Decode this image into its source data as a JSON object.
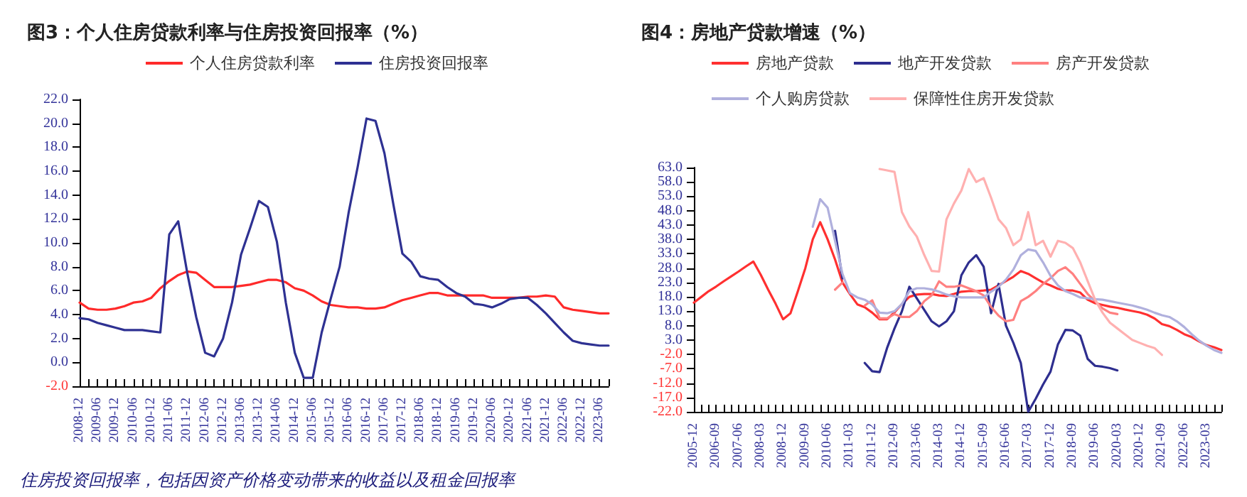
{
  "chart_data": [
    {
      "type": "line",
      "title": "图3：个人住房贷款利率与住房投资回报率（%）",
      "legend": "top",
      "grid": false,
      "marker": "none",
      "line_style": "solid",
      "categories": [
        "2008-12",
        null,
        "2009-06",
        null,
        "2009-12",
        null,
        "2010-06",
        null,
        "2010-12",
        null,
        "2011-06",
        null,
        "2011-12",
        null,
        "2012-06",
        null,
        "2012-12",
        null,
        "2013-06",
        null,
        "2013-12",
        null,
        "2014-06",
        null,
        "2014-12",
        null,
        "2015-06",
        null,
        "2015-12",
        null,
        "2016-06",
        null,
        "2016-12",
        null,
        "2017-06",
        null,
        "2017-12",
        null,
        "2018-06",
        null,
        "2018-12",
        null,
        "2019-06",
        null,
        "2019-12",
        null,
        "2020-06",
        null,
        "2020-12",
        null,
        "2021-06",
        null,
        "2021-12",
        null,
        "2022-06",
        null,
        "2022-12",
        null,
        "2023-06",
        null
      ],
      "ylim": [
        -2,
        22
      ],
      "yticks": [
        {
          "value": -2,
          "label": "-2.0"
        },
        {
          "value": 0,
          "label": "0.0"
        },
        {
          "value": 2,
          "label": "2.0"
        },
        {
          "value": 4,
          "label": "4.0"
        },
        {
          "value": 6,
          "label": "6.0"
        },
        {
          "value": 8,
          "label": "8.0"
        },
        {
          "value": 10,
          "label": "10.0"
        },
        {
          "value": 12,
          "label": "12.0"
        },
        {
          "value": 14,
          "label": "14.0"
        },
        {
          "value": 16,
          "label": "16.0"
        },
        {
          "value": 18,
          "label": "18.0"
        },
        {
          "value": 20,
          "label": "20.0"
        },
        {
          "value": 22,
          "label": "22.0"
        }
      ],
      "series": [
        {
          "name": "个人住房贷款利率",
          "color": "#ff2a2a",
          "values": [
            5.0,
            4.5,
            4.4,
            4.4,
            4.5,
            4.7,
            5.0,
            5.1,
            5.4,
            6.2,
            6.8,
            7.3,
            7.6,
            7.5,
            6.9,
            6.3,
            6.3,
            6.3,
            6.4,
            6.5,
            6.7,
            6.9,
            6.9,
            6.7,
            6.2,
            6.0,
            5.6,
            5.1,
            4.8,
            4.7,
            4.6,
            4.6,
            4.5,
            4.5,
            4.6,
            4.9,
            5.2,
            5.4,
            5.6,
            5.8,
            5.8,
            5.6,
            5.6,
            5.6,
            5.6,
            5.6,
            5.4,
            5.4,
            5.4,
            5.4,
            5.5,
            5.5,
            5.6,
            5.5,
            4.6,
            4.4,
            4.3,
            4.2,
            4.1,
            4.1
          ]
        },
        {
          "name": "住房投资回报率",
          "color": "#2e3192",
          "values": [
            3.7,
            3.6,
            3.3,
            3.1,
            2.9,
            2.7,
            2.7,
            2.7,
            2.6,
            2.5,
            10.7,
            11.8,
            7.5,
            3.8,
            0.8,
            0.5,
            2.0,
            5.0,
            9.0,
            11.2,
            13.5,
            13.0,
            10.1,
            5.0,
            0.8,
            -1.3,
            -1.3,
            2.5,
            5.3,
            8.0,
            12.5,
            16.3,
            20.4,
            20.2,
            17.5,
            13.2,
            9.1,
            8.4,
            7.2,
            7.0,
            6.9,
            6.3,
            5.8,
            5.5,
            4.9,
            4.8,
            4.6,
            4.9,
            5.3,
            5.4,
            5.4,
            4.8,
            4.1,
            3.3,
            2.5,
            1.8,
            1.6,
            1.5,
            1.4,
            1.4
          ]
        }
      ],
      "annotations": [
        "住房投资回报率，包括因资产价格变动带来的收益以及租金回报率"
      ]
    },
    {
      "type": "line",
      "title": "图4：房地产贷款增速（%）",
      "legend": "top",
      "grid": false,
      "marker": "none",
      "line_style": "solid",
      "categories": [
        "2005-12",
        null,
        null,
        "2006-09",
        null,
        null,
        "2007-06",
        null,
        null,
        "2008-03",
        null,
        null,
        "2008-12",
        null,
        null,
        "2009-09",
        null,
        null,
        "2010-06",
        null,
        null,
        "2011-03",
        null,
        null,
        "2011-12",
        null,
        null,
        "2012-09",
        null,
        null,
        "2013-06",
        null,
        null,
        "2014-03",
        null,
        null,
        "2014-12",
        null,
        null,
        "2015-09",
        null,
        null,
        "2016-06",
        null,
        null,
        "2017-03",
        null,
        null,
        "2017-12",
        null,
        null,
        "2018-09",
        null,
        null,
        "2019-06",
        null,
        null,
        "2020-03",
        null,
        null,
        "2020-12",
        null,
        null,
        "2021-09",
        null,
        null,
        "2022-06",
        null,
        null,
        "2023-03",
        null,
        null
      ],
      "ylim": [
        -22,
        63
      ],
      "yticks": [
        {
          "value": -22,
          "label": "-22.0"
        },
        {
          "value": -17,
          "label": "-17.0"
        },
        {
          "value": -12,
          "label": "-12.0"
        },
        {
          "value": -7,
          "label": "-7.0"
        },
        {
          "value": -2,
          "label": "-2.0"
        },
        {
          "value": 3,
          "label": "3.0"
        },
        {
          "value": 8,
          "label": "8.0"
        },
        {
          "value": 13,
          "label": "13.0"
        },
        {
          "value": 18,
          "label": "18.0"
        },
        {
          "value": 23,
          "label": "23.0"
        },
        {
          "value": 28,
          "label": "28.0"
        },
        {
          "value": 33,
          "label": "33.0"
        },
        {
          "value": 38,
          "label": "38.0"
        },
        {
          "value": 43,
          "label": "43.0"
        },
        {
          "value": 48,
          "label": "48.0"
        },
        {
          "value": 53,
          "label": "53.0"
        },
        {
          "value": 58,
          "label": "58.0"
        },
        {
          "value": 63,
          "label": "63.0"
        }
      ],
      "series": [
        {
          "name": "房地产贷款",
          "color": "#ff3030",
          "values": [
            16,
            18,
            20,
            21.6,
            23.4,
            25.1,
            26.8,
            28.6,
            30.3,
            25.7,
            20.5,
            15.6,
            10.2,
            12.3,
            20,
            28,
            38,
            44,
            38,
            31,
            23,
            19,
            15.4,
            14.4,
            12.5,
            10.2,
            10.2,
            12.6,
            15.5,
            18,
            18.8,
            19,
            19,
            18.5,
            18.3,
            19,
            19.8,
            20,
            20,
            20.2,
            20.5,
            22,
            23.5,
            25,
            27,
            26,
            24.5,
            23,
            22,
            20.8,
            20.2,
            20.2,
            19.5,
            17,
            15.8,
            15.2,
            14.6,
            14.2,
            13.6,
            13.1,
            12.6,
            11.8,
            10.5,
            8.5,
            7.8,
            6.5,
            5,
            4,
            2.5,
            1.2,
            0.5,
            -0.5
          ]
        },
        {
          "name": "地产开发贷款",
          "color": "#2e2e8f",
          "values": [
            null,
            null,
            null,
            null,
            null,
            null,
            null,
            null,
            null,
            null,
            null,
            null,
            null,
            null,
            null,
            null,
            null,
            null,
            null,
            41,
            24.4,
            null,
            null,
            -5,
            -7.9,
            -8.2,
            0.2,
            7,
            13,
            21.5,
            17.5,
            13.5,
            9.5,
            7.7,
            9.5,
            13,
            25.5,
            30,
            32.5,
            28.5,
            12.3,
            22.5,
            8,
            2,
            -5,
            -22,
            -17.5,
            -12.5,
            -8,
            1.5,
            6.5,
            6.3,
            4.5,
            -3.6,
            -6,
            -6.3,
            -6.8,
            -7.6,
            null,
            null,
            null,
            null,
            null,
            null,
            null,
            null,
            null,
            null,
            null,
            null,
            null,
            null
          ]
        },
        {
          "name": "房产开发贷款",
          "color": "#ff8080",
          "values": [
            null,
            null,
            null,
            null,
            null,
            null,
            null,
            null,
            null,
            null,
            null,
            null,
            null,
            null,
            null,
            null,
            null,
            null,
            null,
            20.5,
            23,
            null,
            null,
            15,
            16.8,
            10.5,
            10.5,
            12,
            11,
            11,
            13,
            16.5,
            18.5,
            23.4,
            21.5,
            21.5,
            22,
            21,
            20,
            18.5,
            14.5,
            11.5,
            9.5,
            10,
            16.5,
            18,
            20,
            22.5,
            24.5,
            27,
            28.3,
            26,
            22.5,
            19,
            16.5,
            14,
            12.5,
            12,
            null,
            null,
            null,
            null,
            null,
            null,
            null,
            null,
            null,
            null,
            null,
            null,
            null,
            null
          ]
        },
        {
          "name": "个人购房贷款",
          "color": "#b0b0dd",
          "values": [
            null,
            null,
            null,
            null,
            null,
            null,
            null,
            null,
            null,
            null,
            null,
            null,
            null,
            null,
            null,
            null,
            42.4,
            52,
            49,
            37.5,
            26,
            19.3,
            17.8,
            17,
            15.4,
            12.5,
            12.3,
            13,
            15.5,
            20,
            21,
            21,
            20.6,
            19.8,
            18.8,
            18.2,
            17.8,
            17.8,
            17.8,
            17.8,
            19.8,
            21.5,
            24,
            27.5,
            32.5,
            34.5,
            34,
            30,
            25.3,
            22,
            20,
            19,
            17.8,
            17.5,
            17.2,
            17,
            16.5,
            16,
            15.5,
            15,
            14.3,
            13.5,
            12.5,
            11.6,
            11,
            9.5,
            7.5,
            5,
            2.8,
            1,
            -0.5,
            -1.5
          ]
        },
        {
          "name": "保障性住房开发贷款",
          "color": "#ffb0b0",
          "values": [
            null,
            null,
            null,
            null,
            null,
            null,
            null,
            null,
            null,
            null,
            null,
            null,
            null,
            null,
            null,
            null,
            null,
            null,
            null,
            null,
            null,
            null,
            null,
            null,
            null,
            62.5,
            62,
            61.5,
            47.5,
            42.5,
            39,
            32.6,
            27,
            26.8,
            45,
            50.5,
            55,
            62.5,
            58,
            59.3,
            52.5,
            45,
            42,
            36,
            38,
            47.5,
            36,
            37.5,
            32,
            37.5,
            36.8,
            35,
            30,
            23.5,
            17,
            12.5,
            9,
            7,
            5,
            3,
            2,
            1,
            0.2,
            -2.2,
            null,
            null,
            null,
            null,
            null,
            null,
            null,
            null
          ]
        }
      ]
    }
  ]
}
